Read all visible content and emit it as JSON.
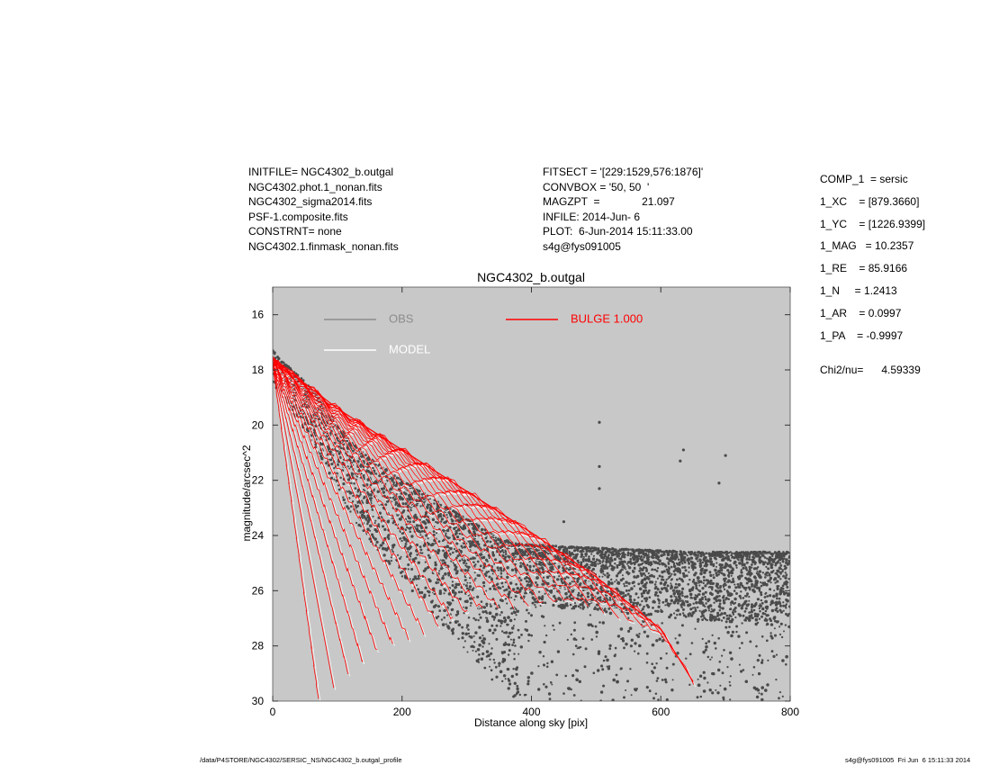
{
  "header": {
    "left": [
      "INITFILE= NGC4302_b.outgal",
      "NGC4302.phot.1_nonan.fits",
      "NGC4302_sigma2014.fits",
      "PSF-1.composite.fits",
      "CONSTRNT= none",
      "NGC4302.1.finmask_nonan.fits"
    ],
    "middle": [
      "FITSECT = '[229:1529,576:1876]'",
      "CONVBOX = '50, 50  '",
      "MAGZPT  =              21.097",
      "INFILE: 2014-Jun- 6",
      "PLOT:  6-Jun-2014 15:11:33.00",
      "s4g@fys091005"
    ]
  },
  "components": {
    "comp": "COMP_1  = sersic",
    "xc": "1_XC    = [879.3660]",
    "yc": "1_YC    = [1226.9399]",
    "mag": "1_MAG   = 10.2357",
    "re": "1_RE    = 85.9166",
    "n": "1_N     = 1.2413",
    "ar": "1_AR    = 0.0997",
    "pa": "1_PA    = -0.9997",
    "chi2": "Chi2/nu=      4.59339"
  },
  "footer": {
    "left": "/data/P4STORE/NGC4302/SERSIC_NS/NGC4302_b.outgal_profile",
    "right": "s4g@fys091005  Fri Jun  6 15:11:33 2014"
  },
  "chart_data": {
    "type": "scatter",
    "title": "NGC4302_b.outgal",
    "xlabel": "Distance along sky [pix]",
    "ylabel": "magnitude/arcsec^2",
    "xlim": [
      0,
      800
    ],
    "ylim": [
      30,
      15
    ],
    "y_inverted": true,
    "xticks": [
      0,
      200,
      400,
      600,
      800
    ],
    "yticks": [
      16,
      18,
      20,
      22,
      24,
      26,
      28,
      30
    ],
    "grid": false,
    "background": "#c8c8c8",
    "legend": [
      {
        "label": "OBS",
        "color": "#8c8c8c"
      },
      {
        "label": "MODEL",
        "color": "#ffffff"
      },
      {
        "label": "BULGE  1.000",
        "color": "#ff0000"
      }
    ],
    "series": [
      {
        "name": "OBS",
        "color": "#4a4a4a",
        "envelope_upper": [
          [
            0,
            17.3
          ],
          [
            20,
            17.8
          ],
          [
            40,
            18.2
          ],
          [
            60,
            18.7
          ],
          [
            80,
            19.3
          ],
          [
            100,
            20.0
          ],
          [
            120,
            20.6
          ],
          [
            150,
            21.2
          ],
          [
            200,
            22.0
          ],
          [
            250,
            22.7
          ],
          [
            300,
            23.4
          ],
          [
            350,
            24.1
          ],
          [
            380,
            24.3
          ],
          [
            450,
            24.4
          ],
          [
            550,
            24.5
          ],
          [
            650,
            24.6
          ],
          [
            800,
            24.6
          ]
        ],
        "envelope_lower": [
          [
            0,
            18.0
          ],
          [
            50,
            30
          ],
          [
            800,
            30
          ]
        ],
        "outliers": [
          [
            505,
            19.9
          ],
          [
            505,
            21.5
          ],
          [
            505,
            22.3
          ],
          [
            635,
            20.9
          ],
          [
            630,
            21.3
          ],
          [
            700,
            21.1
          ],
          [
            690,
            22.1
          ],
          [
            450,
            23.5
          ],
          [
            300,
            22.9
          ]
        ]
      },
      {
        "name": "MODEL",
        "color": "#ffffff"
      },
      {
        "name": "BULGE  1.000",
        "color": "#ff0000",
        "upper_envelope": [
          [
            0,
            17.6
          ],
          [
            100,
            19.4
          ],
          [
            200,
            20.9
          ],
          [
            300,
            22.4
          ],
          [
            400,
            23.9
          ],
          [
            500,
            25.5
          ],
          [
            600,
            27.4
          ],
          [
            650,
            29.3
          ]
        ],
        "lower_envelope": [
          [
            0,
            18.2
          ],
          [
            25,
            22.0
          ],
          [
            50,
            26.0
          ],
          [
            70,
            29.6
          ]
        ]
      }
    ]
  }
}
